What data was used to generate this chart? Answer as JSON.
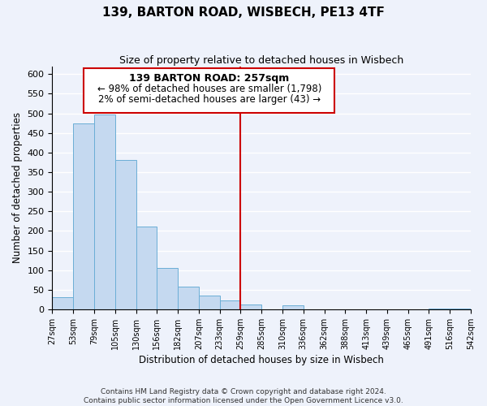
{
  "title": "139, BARTON ROAD, WISBECH, PE13 4TF",
  "subtitle": "Size of property relative to detached houses in Wisbech",
  "xlabel": "Distribution of detached houses by size in Wisbech",
  "ylabel": "Number of detached properties",
  "bar_values": [
    32,
    474,
    497,
    381,
    211,
    106,
    57,
    36,
    22,
    13,
    0,
    11,
    0,
    0,
    0,
    0,
    0,
    0,
    3,
    2
  ],
  "bar_labels": [
    "27sqm",
    "53sqm",
    "79sqm",
    "105sqm",
    "130sqm",
    "156sqm",
    "182sqm",
    "207sqm",
    "233sqm",
    "259sqm",
    "285sqm",
    "310sqm",
    "336sqm",
    "362sqm",
    "388sqm",
    "413sqm",
    "439sqm",
    "465sqm",
    "491sqm",
    "516sqm",
    "542sqm"
  ],
  "bar_color": "#c5d9f0",
  "bar_edge_color": "#6baed6",
  "vline_color": "#cc0000",
  "annotation_title": "139 BARTON ROAD: 257sqm",
  "annotation_line1": "← 98% of detached houses are smaller (1,798)",
  "annotation_line2": "2% of semi-detached houses are larger (43) →",
  "annotation_box_color": "#ffffff",
  "annotation_box_edge": "#cc0000",
  "ylim": [
    0,
    620
  ],
  "yticks": [
    0,
    50,
    100,
    150,
    200,
    250,
    300,
    350,
    400,
    450,
    500,
    550,
    600
  ],
  "footer_line1": "Contains HM Land Registry data © Crown copyright and database right 2024.",
  "footer_line2": "Contains public sector information licensed under the Open Government Licence v3.0.",
  "background_color": "#eef2fb",
  "grid_color": "#ffffff"
}
